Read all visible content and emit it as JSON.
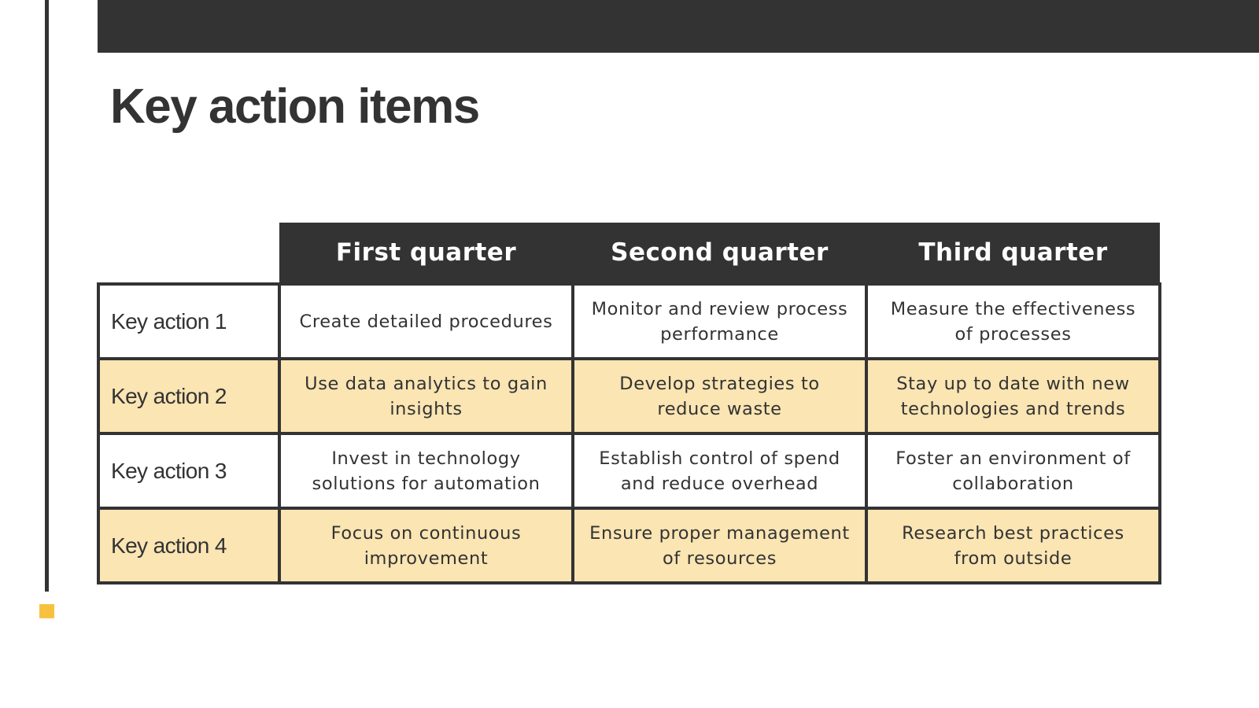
{
  "slide": {
    "title": "Key action items"
  },
  "colors": {
    "dark": "#333333",
    "accent": "#f7c140",
    "row_highlight": "#fae5b3",
    "background": "#ffffff"
  },
  "table": {
    "headers": [
      "First quarter",
      "Second quarter",
      "Third quarter"
    ],
    "rows": [
      {
        "label": "Key action 1",
        "cells": [
          "Create detailed procedures",
          "Monitor and review process performance",
          "Measure the effectiveness of processes"
        ]
      },
      {
        "label": "Key action 2",
        "cells": [
          "Use data analytics to gain insights",
          "Develop strategies to reduce waste",
          "Stay up to date with new technologies and trends"
        ]
      },
      {
        "label": "Key action 3",
        "cells": [
          "Invest in technology solutions for automation",
          "Establish control of spend and reduce overhead",
          "Foster an environment of collaboration"
        ]
      },
      {
        "label": "Key action 4",
        "cells": [
          "Focus on continuous improvement",
          "Ensure proper management of resources",
          "Research best practices from outside"
        ]
      }
    ]
  }
}
